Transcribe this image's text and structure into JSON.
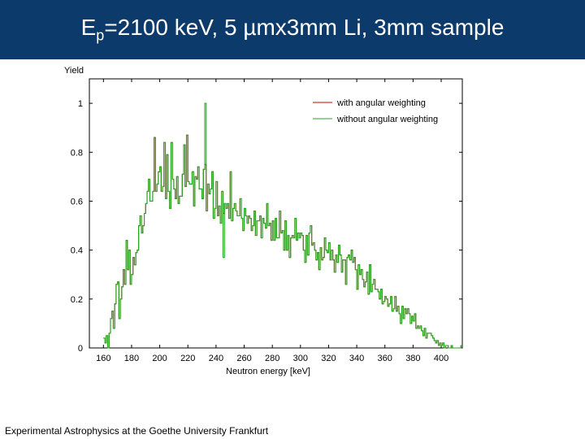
{
  "slide": {
    "title_main": "E",
    "title_sub": "p",
    "title_rest": "=2100 keV, 5 µmx3mm Li, 3mm sample",
    "footer": "Experimental Astrophysics at the Goethe University Frankfurt"
  },
  "colors": {
    "title_bg": "#0b3a6b",
    "with_weighting": "#cc0000",
    "without_weighting": "#22aa22"
  },
  "chart_data": {
    "type": "line",
    "title": "",
    "xlabel": "Neutron energy [keV]",
    "ylabel": "Yield",
    "xlim": [
      150,
      415
    ],
    "ylim": [
      0,
      1.1
    ],
    "xticks": [
      160,
      180,
      200,
      220,
      240,
      260,
      280,
      300,
      320,
      340,
      360,
      380,
      400
    ],
    "xtick_labels": [
      "160",
      "180",
      "200",
      "220",
      "240",
      "260",
      "280",
      "300",
      "320",
      "340",
      "360",
      "380",
      "400"
    ],
    "yticks": [
      0,
      0.2,
      0.4,
      0.6,
      0.8,
      1
    ],
    "ytick_labels": [
      "0",
      "0.2",
      "0.4",
      "0.6",
      "0.8",
      "1"
    ],
    "legend": "top-right",
    "x_start": 160,
    "x_step": 1,
    "series": [
      {
        "name": "with angular weighting",
        "color": "#cc0000",
        "style": "step",
        "values": [
          0.04,
          0.02,
          0.05,
          0.0,
          0.06,
          0.12,
          0.15,
          0.08,
          0.18,
          0.26,
          0.27,
          0.12,
          0.2,
          0.25,
          0.32,
          0.26,
          0.44,
          0.32,
          0.4,
          0.26,
          0.3,
          0.37,
          0.34,
          0.39,
          0.4,
          0.5,
          0.54,
          0.47,
          0.5,
          0.55,
          0.59,
          0.64,
          0.69,
          0.6,
          0.6,
          0.64,
          0.86,
          0.64,
          0.67,
          0.72,
          0.74,
          0.64,
          0.66,
          0.84,
          0.61,
          0.79,
          0.64,
          0.57,
          0.84,
          0.69,
          0.65,
          0.61,
          0.7,
          0.59,
          0.62,
          0.62,
          0.71,
          0.83,
          0.66,
          0.87,
          0.68,
          0.67,
          0.67,
          0.72,
          0.58,
          0.7,
          0.69,
          0.74,
          0.65,
          0.65,
          0.61,
          0.73,
          0.75,
          0.56,
          0.67,
          0.63,
          0.65,
          0.72,
          0.53,
          0.57,
          0.68,
          0.54,
          0.58,
          0.51,
          0.64,
          0.55,
          0.59,
          0.57,
          0.59,
          0.53,
          0.72,
          0.52,
          0.57,
          0.59,
          0.56,
          0.54,
          0.54,
          0.61,
          0.53,
          0.48,
          0.57,
          0.54,
          0.51,
          0.54,
          0.53,
          0.48,
          0.5,
          0.56,
          0.46,
          0.52,
          0.52,
          0.54,
          0.45,
          0.53,
          0.51,
          0.49,
          0.59,
          0.5,
          0.51,
          0.44,
          0.52,
          0.44,
          0.53,
          0.45,
          0.45,
          0.56,
          0.47,
          0.48,
          0.4,
          0.52,
          0.4,
          0.46,
          0.37,
          0.45,
          0.46,
          0.45,
          0.53,
          0.44,
          0.47,
          0.45,
          0.47,
          0.46,
          0.4,
          0.35,
          0.46,
          0.38,
          0.47,
          0.5,
          0.42,
          0.43,
          0.4,
          0.36,
          0.39,
          0.32,
          0.41,
          0.36,
          0.37,
          0.45,
          0.4,
          0.39,
          0.43,
          0.36,
          0.4,
          0.36,
          0.31,
          0.38,
          0.35,
          0.42,
          0.38,
          0.31,
          0.36,
          0.36,
          0.26,
          0.37,
          0.38,
          0.36,
          0.4,
          0.35,
          0.37,
          0.32,
          0.24,
          0.34,
          0.3,
          0.32,
          0.28,
          0.25,
          0.27,
          0.31,
          0.22,
          0.34,
          0.23,
          0.26,
          0.28,
          0.24,
          0.24,
          0.23,
          0.2,
          0.24,
          0.18,
          0.19,
          0.21,
          0.2,
          0.17,
          0.18,
          0.21,
          0.15,
          0.16,
          0.21,
          0.15,
          0.17,
          0.14,
          0.1,
          0.17,
          0.12,
          0.16,
          0.14,
          0.16,
          0.14,
          0.1,
          0.13,
          0.11,
          0.14,
          0.08,
          0.09,
          0.08,
          0.09,
          0.07,
          0.05,
          0.08,
          0.04,
          0.06,
          0.06,
          0.06,
          0.05,
          0.04,
          0.03,
          0.02,
          0.03,
          0.01,
          0.02,
          0.01,
          0.02,
          0.0,
          0.01,
          0.01,
          0.0,
          0.0,
          0.01,
          0.0,
          0.0,
          0.0,
          0.0,
          0.0,
          0.0,
          0.01
        ]
      },
      {
        "name": "without angular weighting",
        "color": "#22aa22",
        "style": "step",
        "values": [
          0.04,
          0.02,
          0.05,
          0.0,
          0.06,
          0.12,
          0.15,
          0.08,
          0.18,
          0.26,
          0.27,
          0.12,
          0.2,
          0.25,
          0.32,
          0.26,
          0.44,
          0.32,
          0.4,
          0.26,
          0.3,
          0.37,
          0.34,
          0.39,
          0.4,
          0.5,
          0.54,
          0.47,
          0.5,
          0.55,
          0.59,
          0.64,
          0.69,
          0.6,
          0.6,
          0.64,
          0.86,
          0.64,
          0.67,
          0.72,
          0.74,
          0.64,
          0.66,
          0.84,
          0.61,
          0.79,
          0.64,
          0.57,
          0.84,
          0.69,
          0.65,
          0.61,
          0.7,
          0.59,
          0.62,
          0.62,
          0.71,
          0.83,
          0.66,
          0.87,
          0.68,
          0.67,
          0.67,
          0.72,
          0.58,
          0.7,
          0.69,
          0.74,
          0.65,
          0.65,
          0.61,
          0.73,
          1.0,
          0.56,
          0.67,
          0.63,
          0.65,
          0.72,
          0.53,
          0.57,
          0.68,
          0.54,
          0.58,
          0.51,
          0.64,
          0.37,
          0.59,
          0.57,
          0.59,
          0.53,
          0.72,
          0.52,
          0.57,
          0.59,
          0.56,
          0.54,
          0.54,
          0.61,
          0.53,
          0.48,
          0.57,
          0.54,
          0.51,
          0.54,
          0.53,
          0.48,
          0.5,
          0.56,
          0.46,
          0.52,
          0.52,
          0.54,
          0.45,
          0.53,
          0.51,
          0.49,
          0.59,
          0.5,
          0.51,
          0.44,
          0.52,
          0.44,
          0.53,
          0.45,
          0.45,
          0.56,
          0.47,
          0.48,
          0.4,
          0.52,
          0.4,
          0.46,
          0.37,
          0.45,
          0.46,
          0.45,
          0.53,
          0.44,
          0.47,
          0.45,
          0.47,
          0.46,
          0.4,
          0.35,
          0.46,
          0.38,
          0.47,
          0.5,
          0.42,
          0.43,
          0.4,
          0.36,
          0.39,
          0.32,
          0.41,
          0.36,
          0.37,
          0.45,
          0.4,
          0.39,
          0.43,
          0.36,
          0.4,
          0.36,
          0.31,
          0.38,
          0.35,
          0.42,
          0.38,
          0.31,
          0.36,
          0.36,
          0.26,
          0.37,
          0.38,
          0.36,
          0.4,
          0.35,
          0.37,
          0.32,
          0.24,
          0.34,
          0.3,
          0.32,
          0.28,
          0.25,
          0.27,
          0.31,
          0.22,
          0.34,
          0.23,
          0.26,
          0.28,
          0.24,
          0.24,
          0.23,
          0.2,
          0.24,
          0.18,
          0.19,
          0.21,
          0.2,
          0.17,
          0.18,
          0.21,
          0.15,
          0.16,
          0.21,
          0.15,
          0.17,
          0.14,
          0.1,
          0.17,
          0.12,
          0.16,
          0.14,
          0.16,
          0.14,
          0.1,
          0.13,
          0.11,
          0.14,
          0.08,
          0.09,
          0.08,
          0.09,
          0.07,
          0.05,
          0.08,
          0.04,
          0.06,
          0.06,
          0.06,
          0.05,
          0.04,
          0.03,
          0.02,
          0.03,
          0.01,
          0.02,
          0.01,
          0.02,
          0.0,
          0.01,
          0.01,
          0.0,
          0.0,
          0.01,
          0.0,
          0.0,
          0.0,
          0.0,
          0.0,
          0.0,
          0.01
        ]
      }
    ]
  }
}
